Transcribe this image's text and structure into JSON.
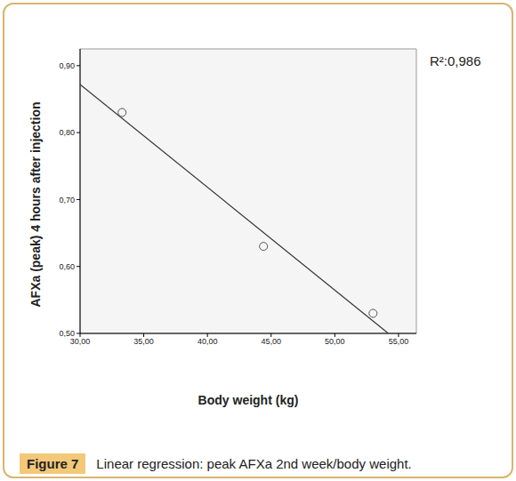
{
  "chart_data": {
    "type": "scatter",
    "x_label": "Body weight (kg)",
    "y_label": "AFXa (peak) 4 hours after injection",
    "annotations": [
      "R²:0,986"
    ],
    "caption": {
      "label": "Figure 7",
      "text": "Linear regression: peak AFXa 2nd week/body weight."
    },
    "x": [
      33.3,
      44.4,
      53.0
    ],
    "values": [
      0.83,
      0.63,
      0.53
    ],
    "marker": "circle",
    "color": "#555555",
    "fit_line": {
      "x": [
        30,
        54.2
      ],
      "values": [
        0.872,
        0.5
      ],
      "color": "#333333"
    },
    "xlim": [
      30,
      56.4
    ],
    "ylim": [
      0.5,
      0.925
    ],
    "xticks": [
      {
        "value": 30,
        "label": "30,00"
      },
      {
        "value": 35,
        "label": "35,00"
      },
      {
        "value": 40,
        "label": "40,00"
      },
      {
        "value": 45,
        "label": "45,00"
      },
      {
        "value": 50,
        "label": "50,00"
      },
      {
        "value": 55,
        "label": "55,00"
      }
    ],
    "yticks": [
      {
        "value": 0.5,
        "label": "0,50"
      },
      {
        "value": 0.6,
        "label": "0,60"
      },
      {
        "value": 0.7,
        "label": "0,70"
      },
      {
        "value": 0.8,
        "label": "0,80"
      },
      {
        "value": 0.9,
        "label": "0,90"
      }
    ],
    "grid": false
  }
}
